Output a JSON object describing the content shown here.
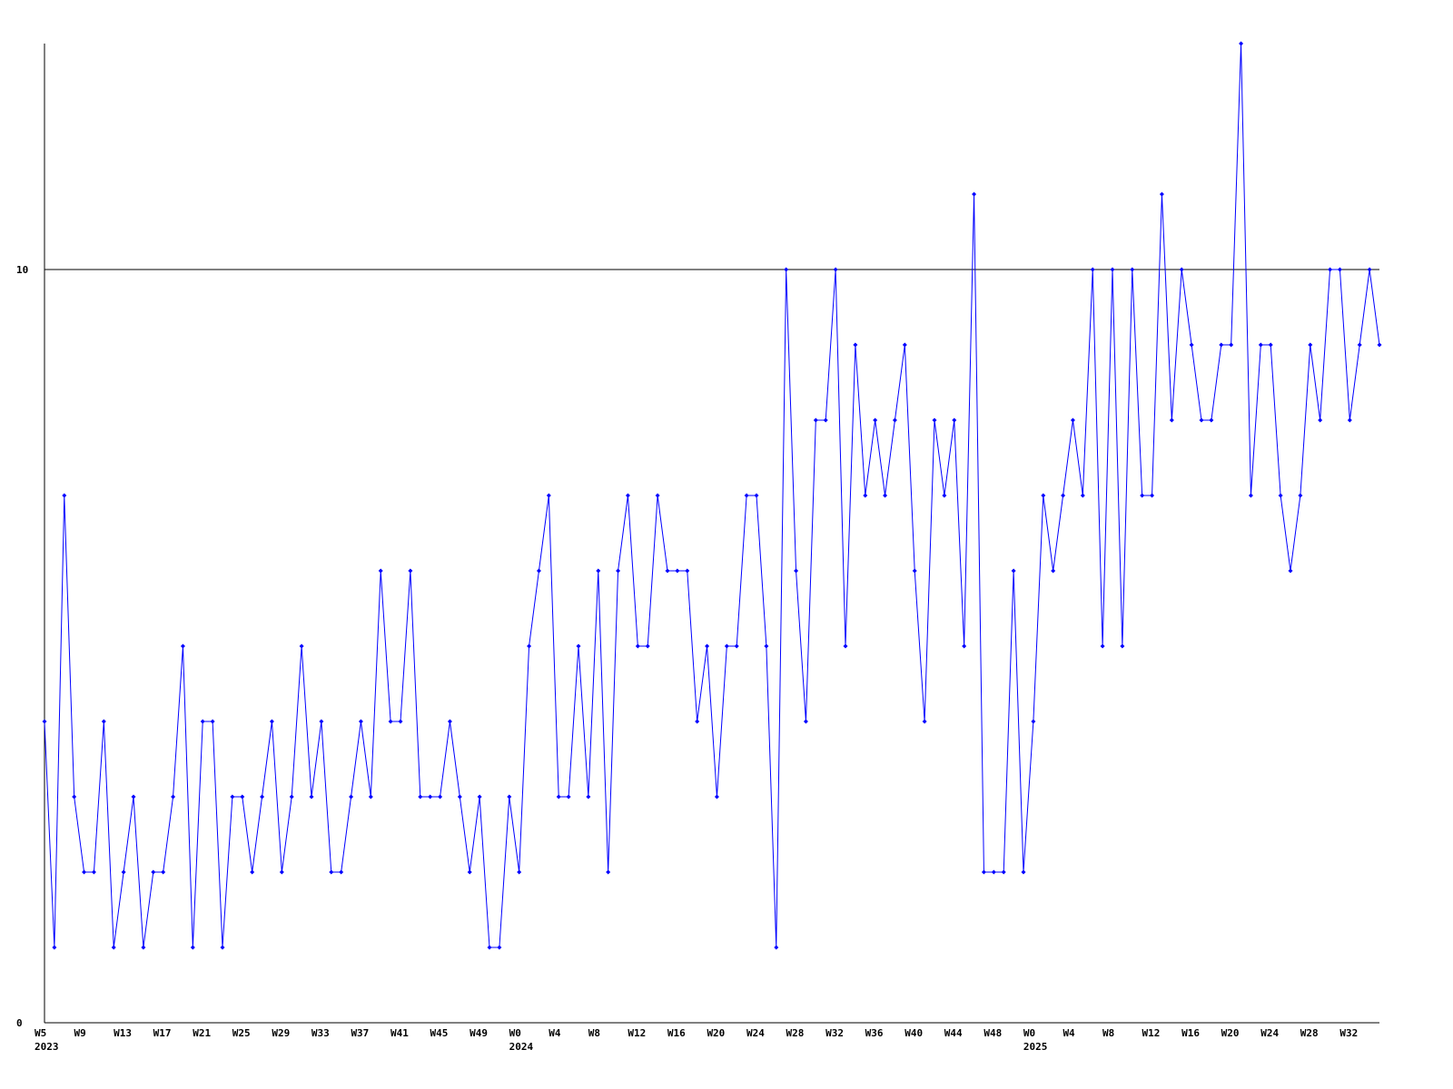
{
  "chart_data": {
    "type": "line",
    "categories": [
      "W5",
      null,
      null,
      null,
      "W9",
      null,
      null,
      null,
      "W13",
      null,
      null,
      null,
      "W17",
      null,
      null,
      null,
      "W21",
      null,
      null,
      null,
      "W25",
      null,
      null,
      null,
      "W29",
      null,
      null,
      null,
      "W33",
      null,
      null,
      null,
      "W37",
      null,
      null,
      null,
      "W41",
      null,
      null,
      null,
      "W45",
      null,
      null,
      null,
      "W49",
      null,
      null,
      null,
      "W0",
      null,
      null,
      null,
      "W4",
      null,
      null,
      null,
      "W8",
      null,
      null,
      null,
      "W12",
      null,
      null,
      null,
      "W16",
      null,
      null,
      null,
      "W20",
      null,
      null,
      null,
      "W24",
      null,
      null,
      null,
      "W28",
      null,
      null,
      null,
      "W32",
      null,
      null,
      null,
      "W36",
      null,
      null,
      null,
      "W40",
      null,
      null,
      null,
      "W44",
      null,
      null,
      null,
      "W48",
      null,
      null,
      null,
      "W0",
      null,
      null,
      null,
      "W4",
      null,
      null,
      null,
      "W8",
      null,
      null,
      null,
      "W12",
      null,
      null,
      null,
      "W16",
      null,
      null,
      null,
      "W20",
      null,
      null,
      null,
      "W24",
      null,
      null,
      null,
      "W28",
      null,
      null,
      null,
      "W32",
      null,
      null,
      null
    ],
    "x_groups": [
      "2023",
      null,
      null,
      null,
      null,
      null,
      null,
      null,
      null,
      null,
      null,
      null,
      null,
      null,
      null,
      null,
      null,
      null,
      null,
      null,
      null,
      null,
      null,
      null,
      null,
      null,
      null,
      null,
      null,
      null,
      null,
      null,
      null,
      null,
      null,
      null,
      null,
      null,
      null,
      null,
      null,
      null,
      null,
      null,
      null,
      null,
      null,
      null,
      "2024",
      null,
      null,
      null,
      null,
      null,
      null,
      null,
      null,
      null,
      null,
      null,
      null,
      null,
      null,
      null,
      null,
      null,
      null,
      null,
      null,
      null,
      null,
      null,
      null,
      null,
      null,
      null,
      null,
      null,
      null,
      null,
      null,
      null,
      null,
      null,
      null,
      null,
      null,
      null,
      null,
      null,
      null,
      null,
      null,
      null,
      null,
      null,
      null,
      null,
      null,
      null,
      "2025",
      null,
      null,
      null,
      null,
      null,
      null,
      null,
      null,
      null,
      null,
      null,
      null,
      null,
      null,
      null,
      null,
      null,
      null,
      null,
      null,
      null,
      null,
      null,
      null,
      null,
      null,
      null,
      null,
      null,
      null,
      null,
      null,
      null,
      null,
      null
    ],
    "series": [
      {
        "color": "#0000ff",
        "values": [
          4,
          1,
          7,
          3,
          2,
          2,
          4,
          1,
          2,
          3,
          1,
          2,
          2,
          3,
          5,
          1,
          4,
          4,
          1,
          3,
          3,
          2,
          3,
          4,
          2,
          3,
          5,
          3,
          4,
          2,
          2,
          3,
          4,
          3,
          6,
          4,
          4,
          6,
          3,
          3,
          3,
          4,
          3,
          2,
          3,
          1,
          1,
          3,
          2,
          5,
          6,
          7,
          3,
          3,
          5,
          3,
          6,
          2,
          6,
          7,
          5,
          5,
          7,
          6,
          6,
          6,
          4,
          5,
          3,
          5,
          5,
          7,
          7,
          5,
          1,
          10,
          6,
          4,
          8,
          8,
          10,
          5,
          9,
          7,
          8,
          7,
          8,
          9,
          6,
          4,
          8,
          7,
          8,
          5,
          11,
          2,
          2,
          2,
          6,
          2,
          4,
          7,
          6,
          7,
          8,
          7,
          10,
          5,
          10,
          5,
          10,
          7,
          7,
          11,
          8,
          10,
          9,
          8,
          8,
          9,
          9,
          13,
          7,
          9,
          9,
          7,
          6,
          7,
          9,
          8,
          10,
          10,
          8,
          9,
          10,
          9
        ]
      }
    ],
    "ylim": [
      0,
      13
    ],
    "yticks": [
      0,
      10
    ],
    "grid": true
  }
}
